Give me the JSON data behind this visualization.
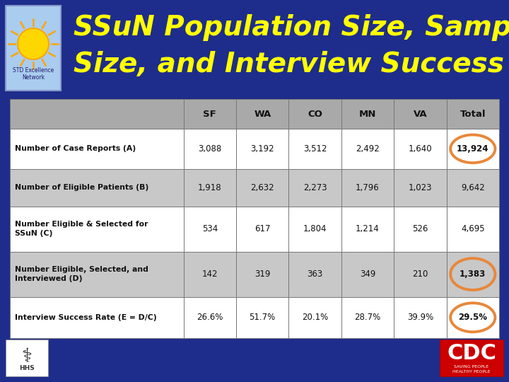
{
  "title_line1": "SSuN Population Size, Sample",
  "title_line2": "Size, and Interview Success Rate",
  "title_color": "#FFFF00",
  "bg_color": "#1E2D8B",
  "table_header_bg": "#A9A9A9",
  "table_row_bg_odd": "#FFFFFF",
  "table_row_bg_even": "#C8C8C8",
  "col_headers": [
    "",
    "SF",
    "WA",
    "CO",
    "MN",
    "VA",
    "Total"
  ],
  "rows": [
    {
      "label": "Number of Case Reports (A)",
      "values": [
        "3,088",
        "3,192",
        "3,512",
        "2,492",
        "1,640",
        "13,924"
      ],
      "circle_total": true
    },
    {
      "label": "Number of Eligible Patients (B)",
      "values": [
        "1,918",
        "2,632",
        "2,273",
        "1,796",
        "1,023",
        "9,642"
      ],
      "circle_total": false
    },
    {
      "label": "Number Eligible & Selected for\nSSuN (C)",
      "values": [
        "534",
        "617",
        "1,804",
        "1,214",
        "526",
        "4,695"
      ],
      "circle_total": false
    },
    {
      "label": "Number Eligible, Selected, and\nInterviewed (D)",
      "values": [
        "142",
        "319",
        "363",
        "349",
        "210",
        "1,383"
      ],
      "circle_total": true
    },
    {
      "label": "Interview Success Rate (E = D/C)",
      "values": [
        "26.6%",
        "51.7%",
        "20.1%",
        "28.7%",
        "39.9%",
        "29.5%"
      ],
      "circle_total": true
    }
  ],
  "circle_color": "#E8873A",
  "text_color_dark": "#111111",
  "logo_box_color": "#AACCEE",
  "logo_box_border": "#8899CC",
  "sun_color": "#FFD700",
  "sun_ray_color": "#FFA500",
  "cdc_red": "#CC0000",
  "cdc_text": "CDC",
  "cdc_sub": "SAVING PEOPLE\nHEALTHY PEOPLE"
}
